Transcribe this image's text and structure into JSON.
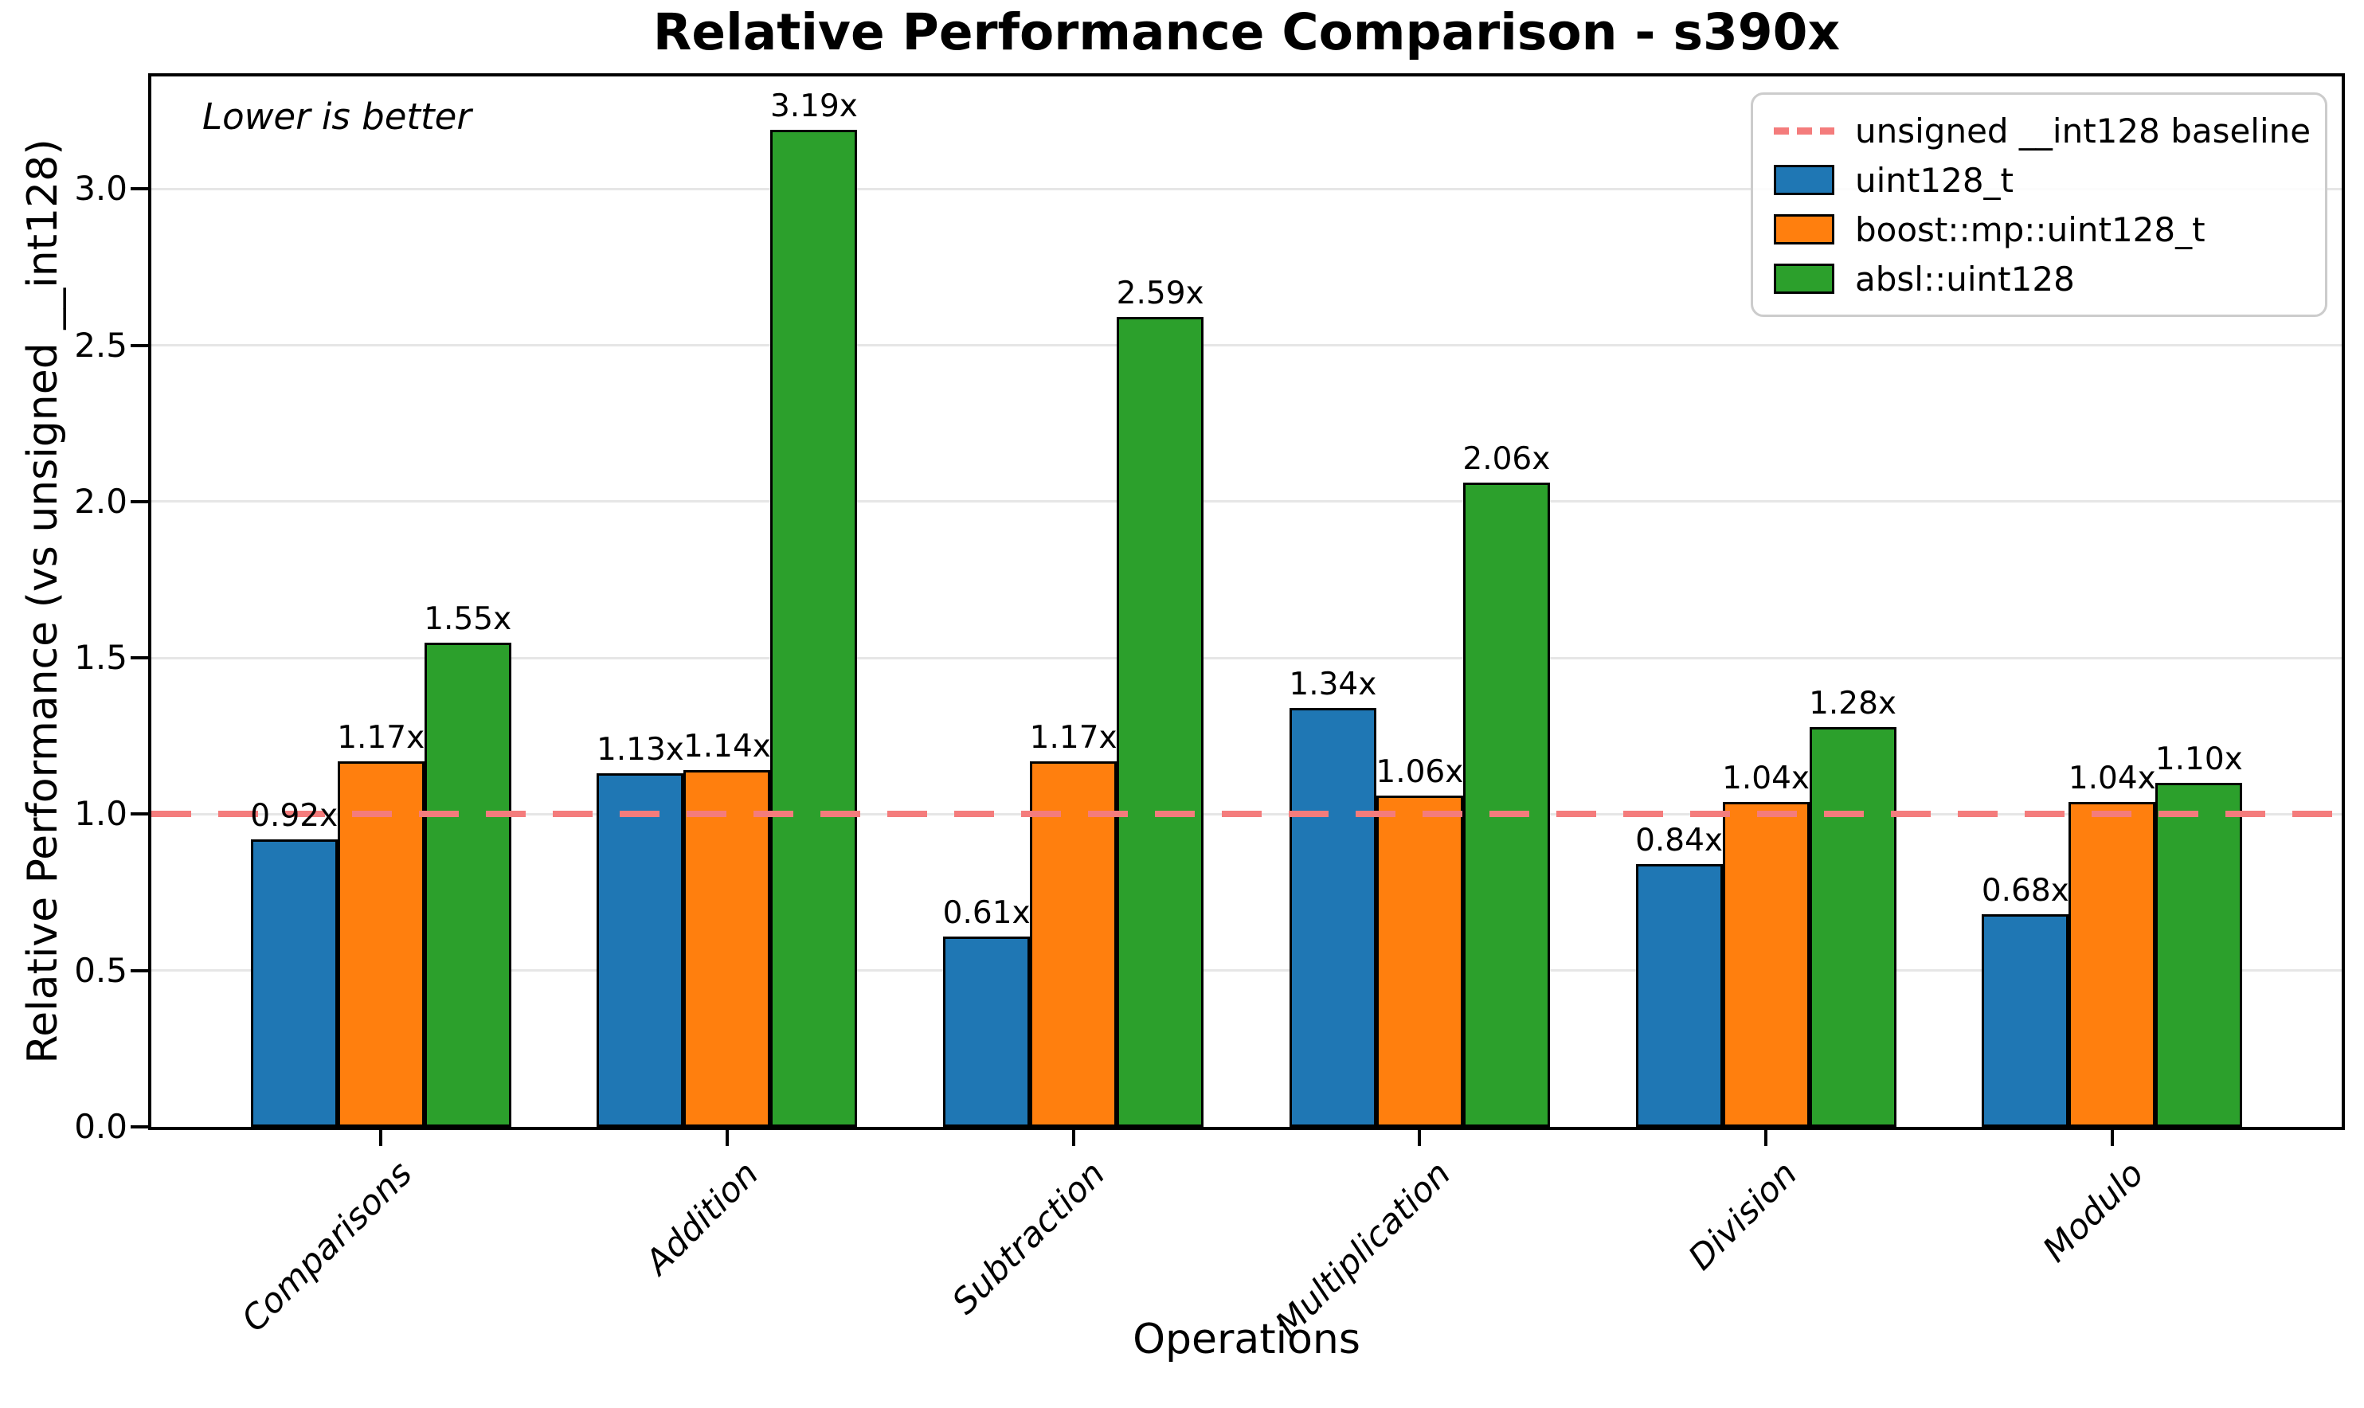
{
  "figure": {
    "title": "Relative Performance Comparison - s390x",
    "annotation": "Lower is better",
    "xlabel": "Operations",
    "ylabel": "Relative Performance (vs unsigned __int128)"
  },
  "chart_data": {
    "type": "bar",
    "title": "Relative Performance Comparison - s390x",
    "xlabel": "Operations",
    "ylabel": "Relative Performance (vs unsigned __int128)",
    "annotation": "Lower is better",
    "grid": true,
    "legend_position": "upper right",
    "categories": [
      "Comparisons",
      "Addition",
      "Subtraction",
      "Multiplication",
      "Division",
      "Modulo"
    ],
    "series": [
      {
        "name": "uint128_t",
        "color": "#1f77b4",
        "values": [
          0.92,
          1.13,
          0.61,
          1.34,
          0.84,
          0.68
        ],
        "labels": [
          "0.92x",
          "1.13x",
          "0.61x",
          "1.34x",
          "0.84x",
          "0.68x"
        ]
      },
      {
        "name": "boost::mp::uint128_t",
        "color": "#ff7f0e",
        "values": [
          1.17,
          1.14,
          1.17,
          1.06,
          1.04,
          1.04
        ],
        "labels": [
          "1.17x",
          "1.14x",
          "1.17x",
          "1.06x",
          "1.04x",
          "1.04x"
        ]
      },
      {
        "name": "absl::uint128",
        "color": "#2ca02c",
        "values": [
          1.55,
          3.19,
          2.59,
          2.06,
          1.28,
          1.1
        ],
        "labels": [
          "1.55x",
          "3.19x",
          "2.59x",
          "2.06x",
          "1.28x",
          "1.10x"
        ]
      }
    ],
    "baseline": {
      "label": "unsigned __int128 baseline",
      "value": 1.0,
      "color": "#f47c7c",
      "style": "dashed"
    },
    "yticks": [
      0.0,
      0.5,
      1.0,
      1.5,
      2.0,
      2.5,
      3.0
    ],
    "ytick_labels": [
      "0.0",
      "0.5",
      "1.0",
      "1.5",
      "2.0",
      "2.5",
      "3.0"
    ],
    "ylim": [
      0,
      3.36
    ],
    "grid_color": "#e6e6e6"
  },
  "legend": {
    "items": [
      {
        "label": "unsigned __int128 baseline",
        "swatch": "dashed-line",
        "color": "#f47c7c"
      },
      {
        "label": "uint128_t",
        "swatch": "patch",
        "color": "#1f77b4"
      },
      {
        "label": "boost::mp::uint128_t",
        "swatch": "patch",
        "color": "#ff7f0e"
      },
      {
        "label": "absl::uint128",
        "swatch": "patch",
        "color": "#2ca02c"
      }
    ]
  }
}
